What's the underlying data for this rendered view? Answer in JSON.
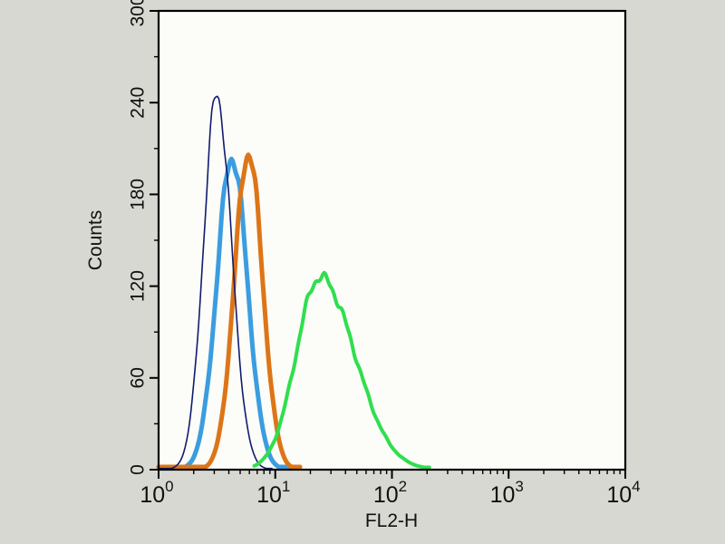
{
  "page": {
    "background_color": "#d8d8d2",
    "plot_background_color": "#fcfcf8",
    "frame_color": "#000000",
    "text_color": "#111111"
  },
  "chart_data": {
    "type": "line",
    "subtype": "flow-cytometry-histogram",
    "title": "",
    "xlabel": "FL2-H",
    "ylabel": "Counts",
    "x_scale": "log10",
    "xlim": [
      1,
      10000
    ],
    "x_ticks": [
      {
        "base": "10",
        "exponent": "0"
      },
      {
        "base": "10",
        "exponent": "1"
      },
      {
        "base": "10",
        "exponent": "2"
      },
      {
        "base": "10",
        "exponent": "3"
      },
      {
        "base": "10",
        "exponent": "4"
      }
    ],
    "ylim": [
      0,
      300
    ],
    "y_ticks": [
      0,
      60,
      120,
      180,
      240,
      300
    ],
    "y_minor_step": 30,
    "grid": false,
    "legend": "none",
    "series": [
      {
        "name": "blue-curve",
        "color": "#3b9de0",
        "line_width": 5,
        "peak_x": 4.3,
        "peak_y": 205,
        "log_mu": 0.63,
        "log_sigma_left": 0.13,
        "log_sigma_right": 0.13,
        "log_range": [
          0.0,
          1.15
        ]
      },
      {
        "name": "orange-curve",
        "color": "#dd7517",
        "line_width": 5,
        "peak_x": 5.9,
        "peak_y": 208,
        "log_mu": 0.77,
        "log_sigma_left": 0.12,
        "log_sigma_right": 0.12,
        "log_range": [
          0.0,
          1.22
        ]
      },
      {
        "name": "navy-curve",
        "color": "#101c6e",
        "line_width": 1.6,
        "peak_x": 3.2,
        "peak_y": 245,
        "log_mu": 0.5,
        "log_sigma_left": 0.115,
        "log_sigma_right": 0.125,
        "log_range": [
          0.0,
          0.98
        ]
      },
      {
        "name": "green-curve",
        "color": "#2fdf4e",
        "line_width": 4,
        "peak_x": 24,
        "peak_y": 126,
        "log_mu": 1.38,
        "log_sigma_left": 0.2,
        "log_sigma_right": 0.3,
        "log_range": [
          0.82,
          2.33
        ]
      }
    ]
  }
}
